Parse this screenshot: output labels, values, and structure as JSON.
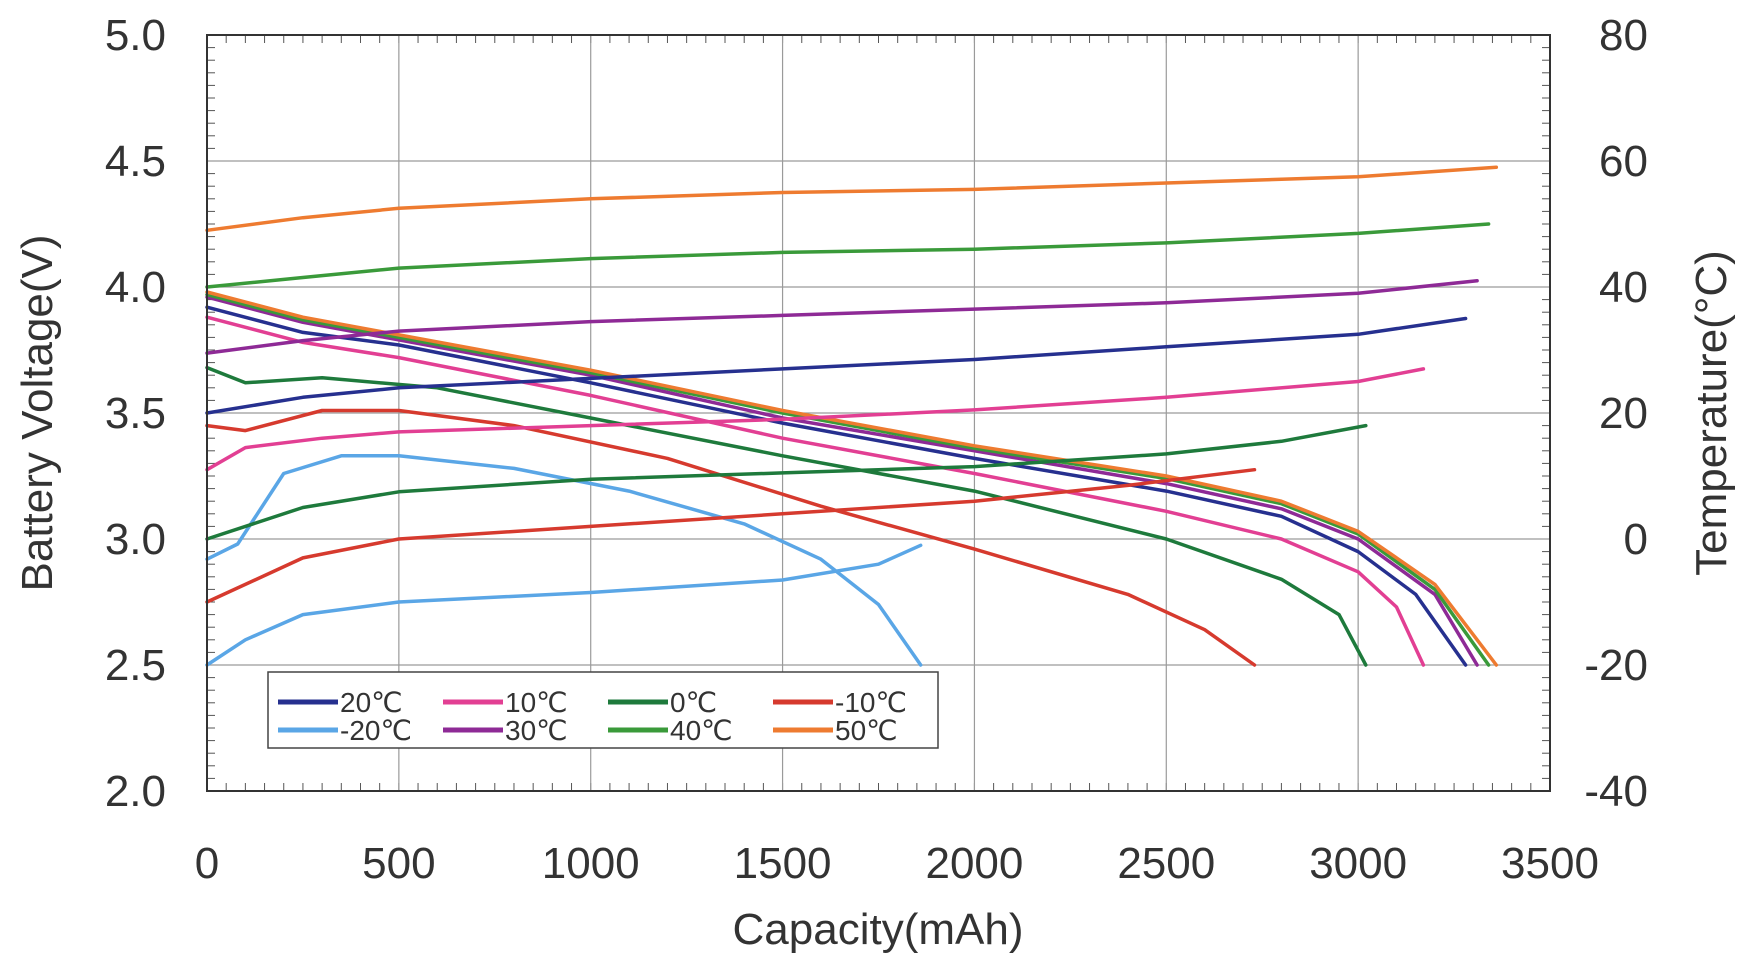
{
  "chart_data": {
    "type": "line",
    "title": "",
    "xlabel": "Capacity(mAh)",
    "ylabel": "Battery Voltage(V)",
    "y2label": "Temperature(°C)",
    "xlim": [
      0,
      3500
    ],
    "ylim": [
      2.0,
      5.0
    ],
    "y2lim": [
      -40,
      80
    ],
    "x_ticks": [
      "0",
      "500",
      "1000",
      "1500",
      "2000",
      "2500",
      "3000",
      "3500"
    ],
    "y_ticks": [
      "2.0",
      "2.5",
      "3.0",
      "3.5",
      "4.0",
      "4.5",
      "5.0"
    ],
    "y2_ticks": [
      "-40",
      "-20",
      "0",
      "20",
      "40",
      "60",
      "80"
    ],
    "grid": true,
    "legend_position": "bottom-left",
    "legend": [
      {
        "label": "20℃",
        "color": "#26308f"
      },
      {
        "label": "10℃",
        "color": "#e23f93"
      },
      {
        "label": "0℃",
        "color": "#1e7a3c"
      },
      {
        "label": "-10℃",
        "color": "#d63a2e"
      },
      {
        "label": "-20℃",
        "color": "#5aa6e6"
      },
      {
        "label": "30℃",
        "color": "#8e2a96"
      },
      {
        "label": "40℃",
        "color": "#3a9a3a"
      },
      {
        "label": "50℃",
        "color": "#ee7b30"
      }
    ],
    "series": [
      {
        "name": "20℃",
        "color": "#26308f",
        "axis": "left",
        "points": [
          [
            0,
            3.92
          ],
          [
            250,
            3.82
          ],
          [
            500,
            3.77
          ],
          [
            1000,
            3.62
          ],
          [
            1500,
            3.46
          ],
          [
            2000,
            3.32
          ],
          [
            2500,
            3.19
          ],
          [
            2800,
            3.09
          ],
          [
            3000,
            2.95
          ],
          [
            3150,
            2.78
          ],
          [
            3280,
            2.5
          ]
        ]
      },
      {
        "name": "10℃",
        "color": "#e23f93",
        "axis": "left",
        "points": [
          [
            0,
            3.88
          ],
          [
            250,
            3.78
          ],
          [
            500,
            3.72
          ],
          [
            1000,
            3.57
          ],
          [
            1500,
            3.4
          ],
          [
            2000,
            3.26
          ],
          [
            2500,
            3.11
          ],
          [
            2800,
            3.0
          ],
          [
            3000,
            2.87
          ],
          [
            3100,
            2.73
          ],
          [
            3170,
            2.5
          ]
        ]
      },
      {
        "name": "0℃",
        "color": "#1e7a3c",
        "axis": "left",
        "points": [
          [
            0,
            3.68
          ],
          [
            100,
            3.62
          ],
          [
            300,
            3.64
          ],
          [
            600,
            3.6
          ],
          [
            1000,
            3.48
          ],
          [
            1500,
            3.33
          ],
          [
            2000,
            3.19
          ],
          [
            2500,
            3.0
          ],
          [
            2800,
            2.84
          ],
          [
            2950,
            2.7
          ],
          [
            3020,
            2.5
          ]
        ]
      },
      {
        "name": "-10℃",
        "color": "#d63a2e",
        "axis": "left",
        "points": [
          [
            0,
            3.45
          ],
          [
            100,
            3.43
          ],
          [
            300,
            3.51
          ],
          [
            500,
            3.51
          ],
          [
            800,
            3.45
          ],
          [
            1200,
            3.32
          ],
          [
            1600,
            3.13
          ],
          [
            2000,
            2.96
          ],
          [
            2400,
            2.78
          ],
          [
            2600,
            2.64
          ],
          [
            2730,
            2.5
          ]
        ]
      },
      {
        "name": "-20℃",
        "color": "#5aa6e6",
        "axis": "left",
        "points": [
          [
            0,
            2.92
          ],
          [
            80,
            2.98
          ],
          [
            200,
            3.26
          ],
          [
            350,
            3.33
          ],
          [
            500,
            3.33
          ],
          [
            800,
            3.28
          ],
          [
            1100,
            3.19
          ],
          [
            1400,
            3.06
          ],
          [
            1600,
            2.92
          ],
          [
            1750,
            2.74
          ],
          [
            1860,
            2.5
          ]
        ]
      },
      {
        "name": "30℃",
        "color": "#8e2a96",
        "axis": "left",
        "points": [
          [
            0,
            3.96
          ],
          [
            250,
            3.86
          ],
          [
            500,
            3.79
          ],
          [
            1000,
            3.65
          ],
          [
            1500,
            3.48
          ],
          [
            2000,
            3.35
          ],
          [
            2500,
            3.22
          ],
          [
            2800,
            3.12
          ],
          [
            3000,
            3.0
          ],
          [
            3200,
            2.78
          ],
          [
            3310,
            2.5
          ]
        ]
      },
      {
        "name": "40℃",
        "color": "#3a9a3a",
        "axis": "left",
        "points": [
          [
            0,
            3.97
          ],
          [
            250,
            3.87
          ],
          [
            500,
            3.8
          ],
          [
            1000,
            3.66
          ],
          [
            1500,
            3.5
          ],
          [
            2000,
            3.36
          ],
          [
            2500,
            3.24
          ],
          [
            2800,
            3.14
          ],
          [
            3000,
            3.02
          ],
          [
            3200,
            2.8
          ],
          [
            3340,
            2.5
          ]
        ]
      },
      {
        "name": "50℃",
        "color": "#ee7b30",
        "axis": "left",
        "points": [
          [
            0,
            3.98
          ],
          [
            250,
            3.88
          ],
          [
            500,
            3.81
          ],
          [
            1000,
            3.67
          ],
          [
            1500,
            3.51
          ],
          [
            2000,
            3.37
          ],
          [
            2500,
            3.25
          ],
          [
            2800,
            3.15
          ],
          [
            3000,
            3.03
          ],
          [
            3200,
            2.82
          ],
          [
            3360,
            2.5
          ]
        ]
      },
      {
        "name": "20℃",
        "color": "#26308f",
        "axis": "right",
        "points": [
          [
            0,
            20
          ],
          [
            250,
            22.5
          ],
          [
            500,
            24
          ],
          [
            1000,
            25.5
          ],
          [
            1500,
            27
          ],
          [
            2000,
            28.5
          ],
          [
            2500,
            30.5
          ],
          [
            3000,
            32.5
          ],
          [
            3280,
            35
          ]
        ]
      },
      {
        "name": "10℃",
        "color": "#e23f93",
        "axis": "right",
        "points": [
          [
            0,
            11
          ],
          [
            100,
            14.5
          ],
          [
            300,
            16
          ],
          [
            500,
            17
          ],
          [
            1000,
            18
          ],
          [
            1500,
            19
          ],
          [
            2000,
            20.5
          ],
          [
            2500,
            22.5
          ],
          [
            3000,
            25
          ],
          [
            3170,
            27
          ]
        ]
      },
      {
        "name": "0℃",
        "color": "#1e7a3c",
        "axis": "right",
        "points": [
          [
            0,
            0
          ],
          [
            250,
            5
          ],
          [
            500,
            7.5
          ],
          [
            1000,
            9.5
          ],
          [
            1500,
            10.5
          ],
          [
            2000,
            11.5
          ],
          [
            2500,
            13.5
          ],
          [
            2800,
            15.5
          ],
          [
            3020,
            18
          ]
        ]
      },
      {
        "name": "-10℃",
        "color": "#d63a2e",
        "axis": "right",
        "points": [
          [
            0,
            -10
          ],
          [
            250,
            -3
          ],
          [
            500,
            0
          ],
          [
            1000,
            2
          ],
          [
            1500,
            4
          ],
          [
            2000,
            6
          ],
          [
            2400,
            8.5
          ],
          [
            2730,
            11
          ]
        ]
      },
      {
        "name": "-20℃",
        "color": "#5aa6e6",
        "axis": "right",
        "points": [
          [
            0,
            -20
          ],
          [
            100,
            -16
          ],
          [
            250,
            -12
          ],
          [
            500,
            -10
          ],
          [
            1000,
            -8.5
          ],
          [
            1500,
            -6.5
          ],
          [
            1750,
            -4
          ],
          [
            1860,
            -1
          ]
        ]
      },
      {
        "name": "30℃",
        "color": "#8e2a96",
        "axis": "right",
        "points": [
          [
            0,
            29.5
          ],
          [
            250,
            31.5
          ],
          [
            500,
            33
          ],
          [
            1000,
            34.5
          ],
          [
            1500,
            35.5
          ],
          [
            2000,
            36.5
          ],
          [
            2500,
            37.5
          ],
          [
            3000,
            39
          ],
          [
            3310,
            41
          ]
        ]
      },
      {
        "name": "40℃",
        "color": "#3a9a3a",
        "axis": "right",
        "points": [
          [
            0,
            40
          ],
          [
            250,
            41.5
          ],
          [
            500,
            43
          ],
          [
            1000,
            44.5
          ],
          [
            1500,
            45.5
          ],
          [
            2000,
            46
          ],
          [
            2500,
            47
          ],
          [
            3000,
            48.5
          ],
          [
            3340,
            50
          ]
        ]
      },
      {
        "name": "50℃",
        "color": "#ee7b30",
        "axis": "right",
        "points": [
          [
            0,
            49
          ],
          [
            250,
            51
          ],
          [
            500,
            52.5
          ],
          [
            1000,
            54
          ],
          [
            1500,
            55
          ],
          [
            2000,
            55.5
          ],
          [
            2500,
            56.5
          ],
          [
            3000,
            57.5
          ],
          [
            3360,
            59
          ]
        ]
      }
    ]
  }
}
